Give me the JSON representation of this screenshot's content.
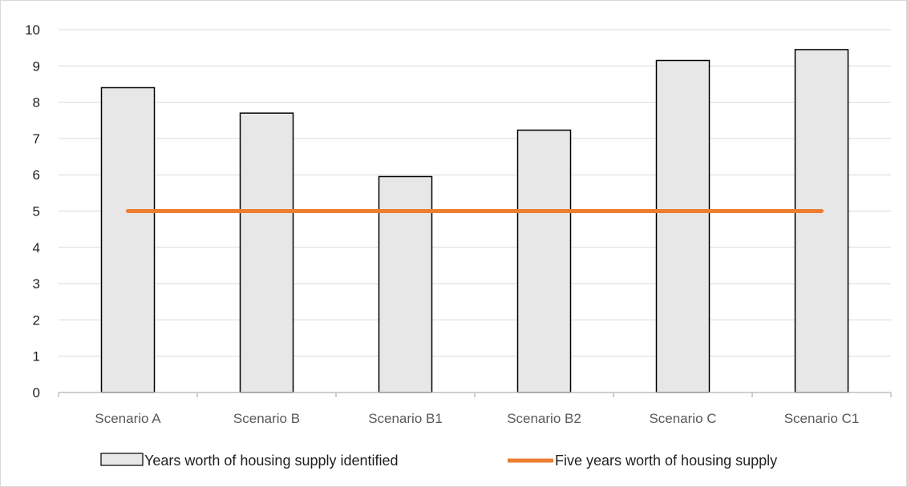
{
  "chart_data": {
    "type": "bar",
    "categories": [
      "Scenario A",
      "Scenario B",
      "Scenario B1",
      "Scenario B2",
      "Scenario C",
      "Scenario C1"
    ],
    "series": [
      {
        "name": "Years worth of housing supply identified",
        "type": "bar",
        "values": [
          8.4,
          7.7,
          5.95,
          7.23,
          9.15,
          9.45
        ],
        "color": "#e7e7e7",
        "edge_color": "#000000"
      },
      {
        "name": "Five years worth of housing supply",
        "type": "line",
        "values": [
          5,
          5,
          5,
          5,
          5,
          5
        ],
        "color": "#ed7d31"
      }
    ],
    "y_ticks": [
      "0",
      "1",
      "2",
      "3",
      "4",
      "5",
      "6",
      "7",
      "8",
      "9",
      "10"
    ],
    "ylim": [
      0,
      10
    ],
    "grid": true,
    "legend_position": "bottom",
    "title": "",
    "xlabel": "",
    "ylabel": ""
  }
}
